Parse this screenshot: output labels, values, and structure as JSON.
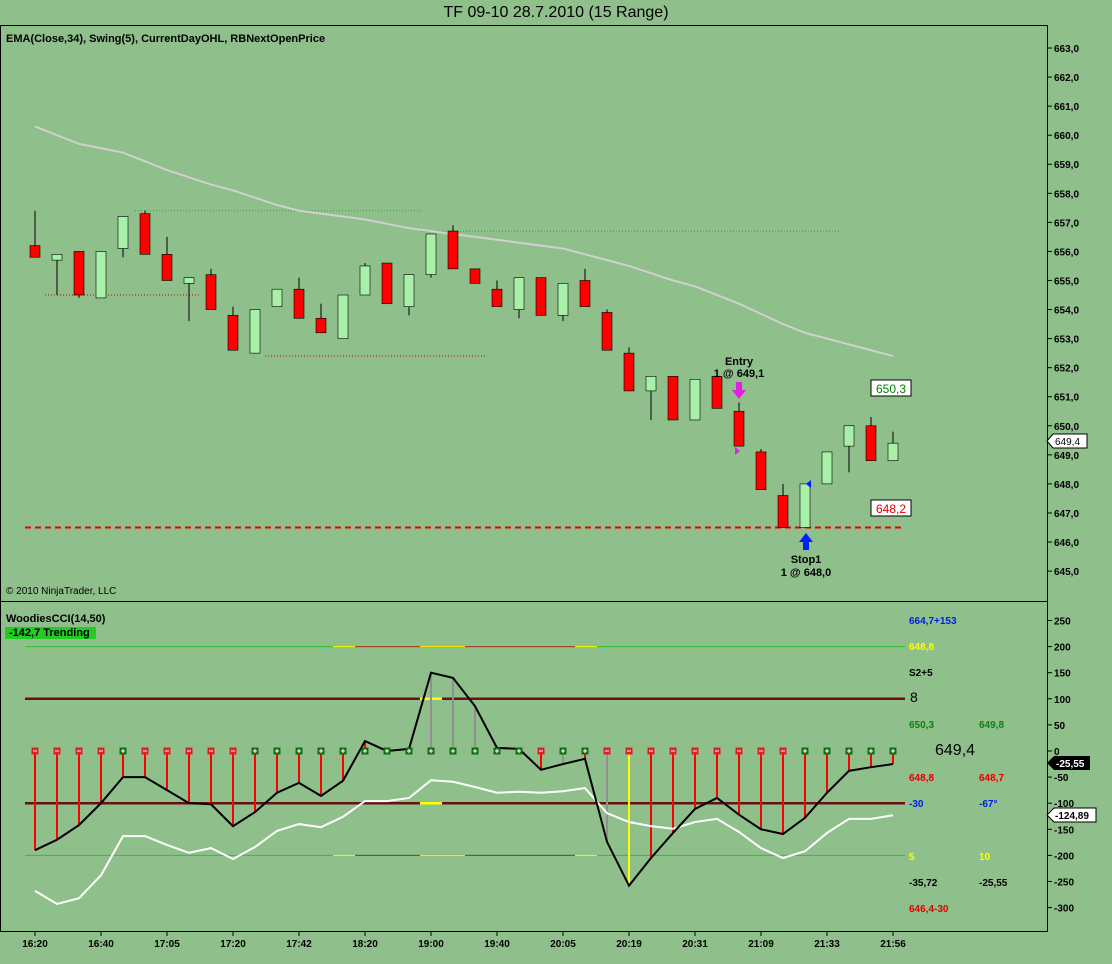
{
  "header": {
    "title": "TF 09-10  28.7.2010 (15 Range)"
  },
  "price_panel": {
    "indicators_label": "EMA(Close,34), Swing(5), CurrentDayOHL, RBNextOpenPrice",
    "copyright": "© 2010 NinjaTrader, LLC",
    "entry_label": "Entry",
    "entry_detail": "1 @ 649,1",
    "stop_label": "Stop1",
    "stop_detail": "1 @ 648,0",
    "high_marker": "650,3",
    "low_marker": "648,2",
    "last_price": "649,4"
  },
  "cci_panel": {
    "title": "WoodiesCCI(14,50)",
    "status": "-142,7 Trending",
    "right_labels": {
      "a": "664,7+153",
      "b": "648,8",
      "c": "S2+5",
      "d": "8",
      "e": "650,3",
      "f": "649,8",
      "g": "649,4",
      "h": "648,8",
      "i": "648,7",
      "j": "-30",
      "k": "-67°",
      "l": "5",
      "m": "10",
      "n": "-35,72",
      "o": "-25,55",
      "p": "646,4-30"
    },
    "cci_value_tag": "-25,55",
    "tcci_value_tag": "-124,89"
  },
  "colors": {
    "background": "#8fbf8b",
    "up": "#a8f0a8",
    "down": "#ff0000",
    "ema": "#d0d0d0",
    "cci": "#000000",
    "tcci": "#ffffff"
  },
  "chart_data": [
    {
      "type": "candlestick",
      "title": "TF 09-10 28.7.2010 (15 Range)",
      "ylim": [
        644.5,
        663.3
      ],
      "y_ticks": [
        "663,0",
        "662,0",
        "661,0",
        "660,0",
        "659,0",
        "658,0",
        "657,0",
        "656,0",
        "655,0",
        "654,0",
        "653,0",
        "652,0",
        "651,0",
        "650,0",
        "649,0",
        "648,0",
        "647,0",
        "646,0",
        "645,0"
      ],
      "x_ticks": [
        {
          "bar": 0,
          "label": "16:20"
        },
        {
          "bar": 3,
          "label": "16:40"
        },
        {
          "bar": 6,
          "label": "17:05"
        },
        {
          "bar": 9,
          "label": "17:20"
        },
        {
          "bar": 12,
          "label": "17:42"
        },
        {
          "bar": 15,
          "label": "18:20"
        },
        {
          "bar": 18,
          "label": "19:00"
        },
        {
          "bar": 21,
          "label": "19:40"
        },
        {
          "bar": 24,
          "label": "20:05"
        },
        {
          "bar": 27,
          "label": "20:19"
        },
        {
          "bar": 30,
          "label": "20:31"
        },
        {
          "bar": 33,
          "label": "21:09"
        },
        {
          "bar": 36,
          "label": "21:33"
        },
        {
          "bar": 39,
          "label": "21:56"
        }
      ],
      "ohlc": [
        [
          656.2,
          657.4,
          655.8,
          655.8
        ],
        [
          655.7,
          655.9,
          654.5,
          655.9
        ],
        [
          656.0,
          656.0,
          654.4,
          654.5
        ],
        [
          654.4,
          656.0,
          654.4,
          656.0
        ],
        [
          656.1,
          657.2,
          655.8,
          657.2
        ],
        [
          657.3,
          657.4,
          655.9,
          655.9
        ],
        [
          655.9,
          656.5,
          655.0,
          655.0
        ],
        [
          654.9,
          655.1,
          653.6,
          655.1
        ],
        [
          655.2,
          655.4,
          654.0,
          654.0
        ],
        [
          653.8,
          654.1,
          652.6,
          652.6
        ],
        [
          652.5,
          654.0,
          652.5,
          654.0
        ],
        [
          654.1,
          654.7,
          654.1,
          654.7
        ],
        [
          654.7,
          655.1,
          653.7,
          653.7
        ],
        [
          653.7,
          654.2,
          653.2,
          653.2
        ],
        [
          653.0,
          654.5,
          653.0,
          654.5
        ],
        [
          654.5,
          655.6,
          654.5,
          655.5
        ],
        [
          655.6,
          655.6,
          654.2,
          654.2
        ],
        [
          654.1,
          655.2,
          653.8,
          655.2
        ],
        [
          655.2,
          656.6,
          655.1,
          656.6
        ],
        [
          656.7,
          656.9,
          655.4,
          655.4
        ],
        [
          655.4,
          655.4,
          654.9,
          654.9
        ],
        [
          654.7,
          655.0,
          654.1,
          654.1
        ],
        [
          654.0,
          655.1,
          653.7,
          655.1
        ],
        [
          655.1,
          655.1,
          653.8,
          653.8
        ],
        [
          653.8,
          654.9,
          653.6,
          654.9
        ],
        [
          655.0,
          655.4,
          654.1,
          654.1
        ],
        [
          653.9,
          654.0,
          652.6,
          652.6
        ],
        [
          652.5,
          652.7,
          651.2,
          651.2
        ],
        [
          651.2,
          651.7,
          650.2,
          651.7
        ],
        [
          651.7,
          651.7,
          650.2,
          650.2
        ],
        [
          650.2,
          651.6,
          650.2,
          651.6
        ],
        [
          651.7,
          651.8,
          650.6,
          650.6
        ],
        [
          650.5,
          650.8,
          649.3,
          649.3
        ],
        [
          649.1,
          649.2,
          647.8,
          647.8
        ],
        [
          647.6,
          648.0,
          646.5,
          646.5
        ],
        [
          646.5,
          648.0,
          646.5,
          648.0
        ],
        [
          648.0,
          649.1,
          648.0,
          649.1
        ],
        [
          649.3,
          650.0,
          648.4,
          650.0
        ],
        [
          650.0,
          650.3,
          648.8,
          648.8
        ],
        [
          648.8,
          649.8,
          648.8,
          649.4
        ]
      ],
      "ema34": [
        660.3,
        660.0,
        659.7,
        659.55,
        659.4,
        659.1,
        658.8,
        658.55,
        658.3,
        658.1,
        657.85,
        657.6,
        657.4,
        657.3,
        657.2,
        657.1,
        656.95,
        656.8,
        656.7,
        656.6,
        656.5,
        656.4,
        656.3,
        656.2,
        656.1,
        655.9,
        655.7,
        655.5,
        655.25,
        655.0,
        654.8,
        654.5,
        654.2,
        653.85,
        653.5,
        653.2,
        653.0,
        652.8,
        652.6,
        652.4
      ],
      "swing_highs": [
        {
          "from": 5,
          "to": 18,
          "price": 657.4
        },
        {
          "from": 18,
          "to": 37,
          "price": 656.7
        }
      ],
      "swing_lows": [
        {
          "from": 0,
          "to": 7,
          "price": 654.5
        },
        {
          "from": 10,
          "to": 20,
          "price": 652.4
        }
      ],
      "stop_line": 646.5
    },
    {
      "type": "line",
      "title": "WoodiesCCI(14,50)",
      "ylim": [
        -320,
        270
      ],
      "y_ticks": [
        250,
        200,
        150,
        100,
        50,
        0,
        -50,
        -100,
        -150,
        -200,
        -250,
        -300
      ],
      "levels": [
        200,
        100,
        -100,
        -200
      ],
      "cci": [
        -190,
        -170,
        -142,
        -100,
        -50,
        -50,
        -75,
        -100,
        -102,
        -144,
        -117,
        -80,
        -61,
        -86,
        -57,
        19,
        0,
        4,
        150,
        140,
        86,
        6,
        4,
        -36,
        -25,
        -15,
        -174,
        -258,
        -205,
        -157,
        -111,
        -90,
        -122,
        -150,
        -159,
        -128,
        -80,
        -38,
        -31,
        -25
      ],
      "tcci": [
        -268,
        -293,
        -282,
        -238,
        -163,
        -163,
        -180,
        -195,
        -186,
        -207,
        -184,
        -153,
        -140,
        -146,
        -126,
        -96,
        -96,
        -90,
        -56,
        -59,
        -69,
        -80,
        -78,
        -80,
        -77,
        -71,
        -119,
        -136,
        -144,
        -149,
        -136,
        -130,
        -155,
        -186,
        -205,
        -192,
        -157,
        -130,
        -130,
        -123
      ],
      "hist_color": [
        "r",
        "r",
        "r",
        "r",
        "r",
        "r",
        "r",
        "r",
        "r",
        "r",
        "r",
        "r",
        "r",
        "r",
        "r",
        "r",
        "r",
        "r",
        "g",
        "g",
        "g",
        "r",
        "r",
        "r",
        "g",
        "r",
        "g",
        "y",
        "r",
        "r",
        "r",
        "r",
        "r",
        "r",
        "r",
        "r",
        "r",
        "r",
        "r",
        "r"
      ],
      "markers": [
        "-",
        "-",
        "-",
        "-",
        "+",
        "-",
        "-",
        "-",
        "-",
        "-",
        "+",
        "+",
        "+",
        "+",
        "+",
        "+",
        "+",
        "+",
        "+",
        "+",
        "+",
        "+",
        "+",
        "-",
        "+",
        "+",
        "-",
        "-",
        "-",
        "-",
        "-",
        "-",
        "-",
        "-",
        "-",
        "+",
        "+",
        "+",
        "+",
        "+"
      ]
    }
  ]
}
